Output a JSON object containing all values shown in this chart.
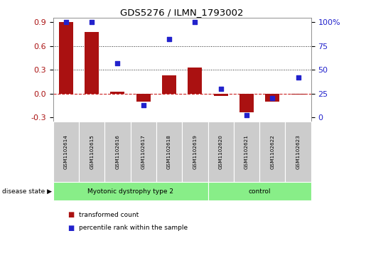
{
  "title": "GDS5276 / ILMN_1793002",
  "samples": [
    "GSM1102614",
    "GSM1102615",
    "GSM1102616",
    "GSM1102617",
    "GSM1102618",
    "GSM1102619",
    "GSM1102620",
    "GSM1102621",
    "GSM1102622",
    "GSM1102623"
  ],
  "red_bars": [
    0.9,
    0.775,
    0.02,
    -0.1,
    0.225,
    0.33,
    -0.03,
    -0.235,
    -0.1,
    -0.01
  ],
  "blue_dots_pct": [
    100,
    100,
    57,
    13,
    82,
    100,
    30,
    2,
    20,
    42
  ],
  "ylim_left": [
    -0.35,
    0.95
  ],
  "yticks_left": [
    -0.3,
    0.0,
    0.3,
    0.6,
    0.9
  ],
  "yticks_right": [
    0,
    25,
    50,
    75,
    100
  ],
  "bar_color": "#aa1111",
  "dot_color": "#2222cc",
  "zero_line_color": "#cc2222",
  "dotted_line_color": "#222222",
  "group1_label": "Myotonic dystrophy type 2",
  "group1_count": 6,
  "group2_label": "control",
  "group2_count": 4,
  "group_bg_color": "#88ee88",
  "sample_bg_color": "#cccccc",
  "legend_red": "transformed count",
  "legend_blue": "percentile rank within the sample",
  "disease_state_label": "disease state"
}
